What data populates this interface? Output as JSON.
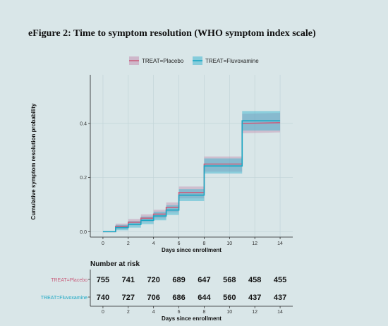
{
  "title": "eFigure 2: Time to symptom resolution (WHO symptom index scale)",
  "chart_data": {
    "type": "line",
    "step": true,
    "xlabel": "Days since enrollment",
    "ylabel": "Cumulative symptom resolution probability",
    "xlim": [
      -1,
      15
    ],
    "ylim": [
      -0.02,
      0.58
    ],
    "xticks": [
      0,
      2,
      4,
      6,
      8,
      10,
      12,
      14
    ],
    "yticks": [
      0.0,
      0.2,
      0.4
    ],
    "ytick_labels": [
      "0.0",
      "0.2",
      "0.4"
    ],
    "grid": true,
    "legend_position": "top",
    "series": [
      {
        "name": "TREAT=Placebo",
        "color": "#c9607e",
        "band_color": "#c48fb0",
        "points": [
          [
            0,
            0
          ],
          [
            1,
            0
          ],
          [
            1,
            0.02
          ],
          [
            2,
            0.02
          ],
          [
            2,
            0.035
          ],
          [
            3,
            0.035
          ],
          [
            3,
            0.05
          ],
          [
            4,
            0.05
          ],
          [
            4,
            0.065
          ],
          [
            5,
            0.065
          ],
          [
            5,
            0.09
          ],
          [
            6,
            0.09
          ],
          [
            6,
            0.145
          ],
          [
            8,
            0.145
          ],
          [
            8,
            0.25
          ],
          [
            11,
            0.25
          ],
          [
            11,
            0.4
          ],
          [
            14,
            0.403
          ]
        ],
        "ci_halfwidth": [
          0,
          0,
          0.01,
          0.01,
          0.012,
          0.012,
          0.014,
          0.014,
          0.016,
          0.016,
          0.018,
          0.018,
          0.022,
          0.022,
          0.028,
          0.028,
          0.036,
          0.036
        ]
      },
      {
        "name": "TREAT=Fluvoxamine",
        "color": "#1aa7c4",
        "band_color": "#3fb6cf",
        "points": [
          [
            0,
            0
          ],
          [
            1,
            0
          ],
          [
            1,
            0.015
          ],
          [
            2,
            0.015
          ],
          [
            2,
            0.027
          ],
          [
            3,
            0.027
          ],
          [
            3,
            0.042
          ],
          [
            4,
            0.042
          ],
          [
            4,
            0.058
          ],
          [
            5,
            0.058
          ],
          [
            5,
            0.08
          ],
          [
            6,
            0.08
          ],
          [
            6,
            0.135
          ],
          [
            8,
            0.135
          ],
          [
            8,
            0.243
          ],
          [
            11,
            0.243
          ],
          [
            11,
            0.41
          ],
          [
            14,
            0.41
          ]
        ],
        "ci_halfwidth": [
          0,
          0,
          0.01,
          0.01,
          0.012,
          0.012,
          0.014,
          0.014,
          0.016,
          0.016,
          0.018,
          0.018,
          0.022,
          0.022,
          0.028,
          0.028,
          0.036,
          0.036
        ]
      }
    ],
    "risk_table": {
      "title": "Number at risk",
      "xlabel": "Days since enrollment",
      "times": [
        0,
        2,
        4,
        6,
        8,
        10,
        12,
        14
      ],
      "rows": [
        {
          "label": "TREAT=Placebo",
          "color": "#c9607e",
          "values": [
            755,
            741,
            720,
            689,
            647,
            568,
            458,
            455
          ]
        },
        {
          "label": "TREAT=Fluvoxamine",
          "color": "#1aa7c4",
          "values": [
            740,
            727,
            706,
            686,
            644,
            560,
            437,
            437
          ]
        }
      ]
    }
  }
}
